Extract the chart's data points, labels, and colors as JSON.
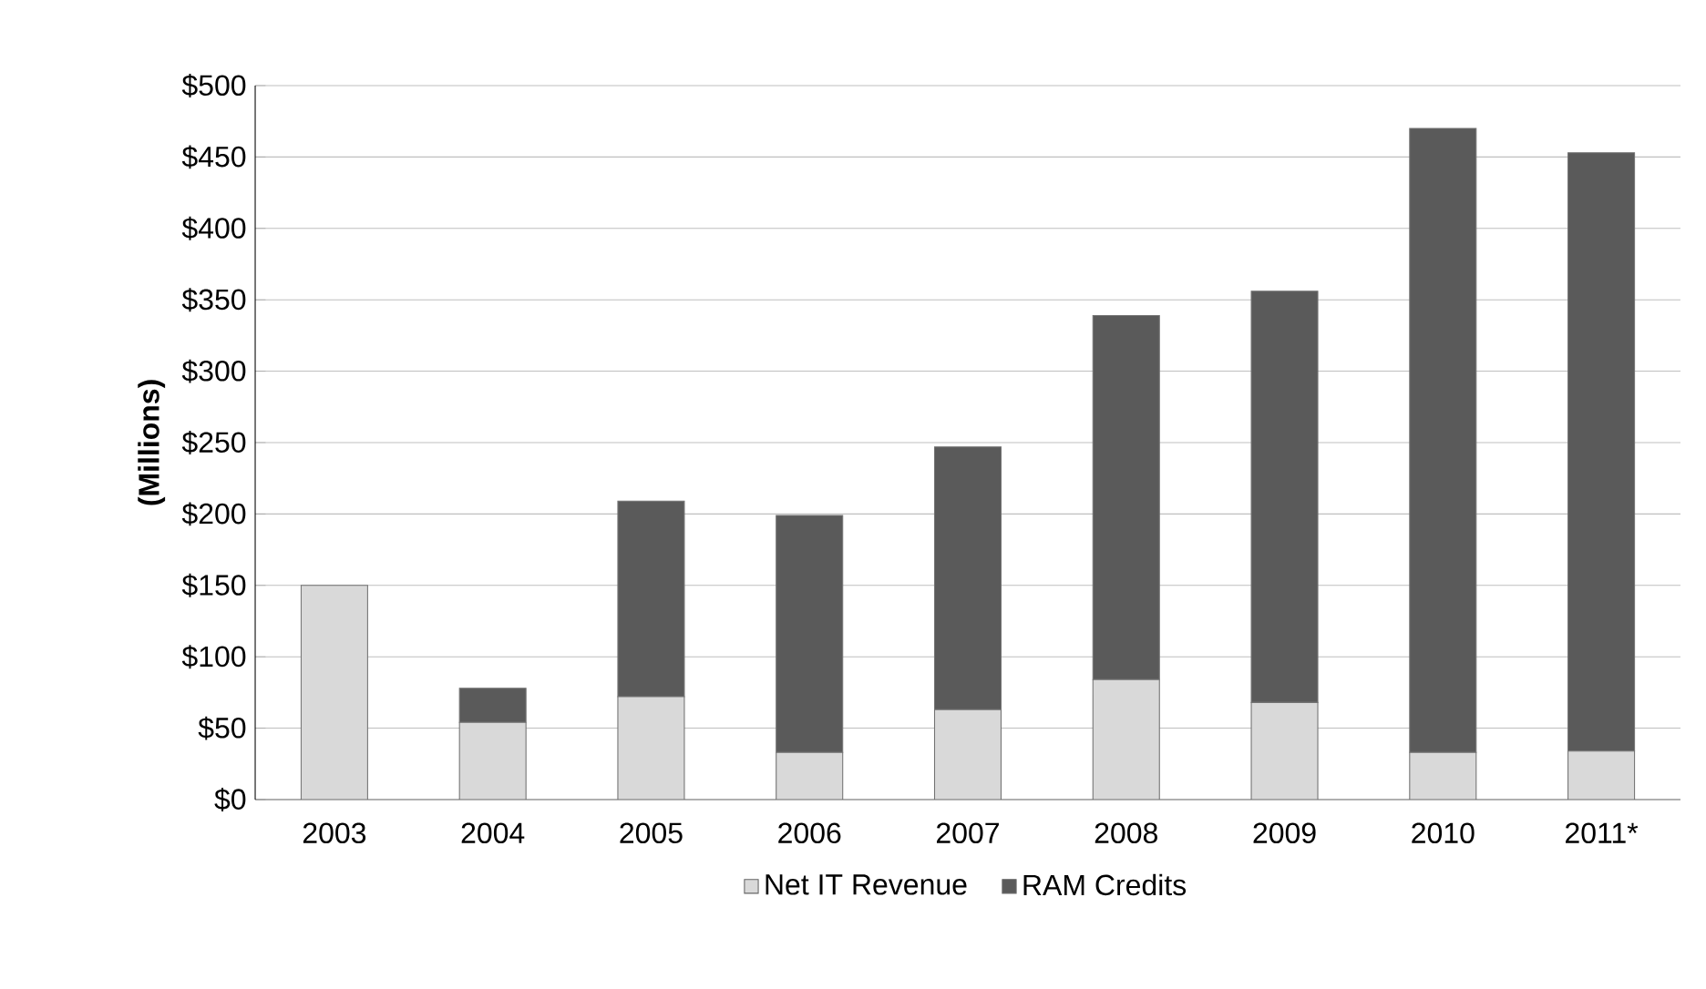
{
  "chart_data": {
    "type": "bar",
    "stacked": true,
    "ylabel": "(Millions)",
    "categories": [
      "2003",
      "2004",
      "2005",
      "2006",
      "2007",
      "2008",
      "2009",
      "2010",
      "2011*"
    ],
    "series": [
      {
        "name": "Net IT Revenue",
        "color": "#d9d9d9",
        "values": [
          150,
          54,
          72,
          33,
          63,
          84,
          68,
          33,
          34
        ]
      },
      {
        "name": "RAM Credits",
        "color": "#5a5a5a",
        "values": [
          0,
          24,
          137,
          166,
          184,
          255,
          288,
          437,
          419
        ]
      }
    ],
    "ylim": [
      0,
      500
    ],
    "yticks": [
      {
        "value": 0,
        "label": "$0"
      },
      {
        "value": 50,
        "label": "$50"
      },
      {
        "value": 100,
        "label": "$100"
      },
      {
        "value": 150,
        "label": "$150"
      },
      {
        "value": 200,
        "label": "$200"
      },
      {
        "value": 250,
        "label": "$250"
      },
      {
        "value": 300,
        "label": "$300"
      },
      {
        "value": 350,
        "label": "$350"
      },
      {
        "value": 400,
        "label": "$400"
      },
      {
        "value": 450,
        "label": "$450"
      },
      {
        "value": 500,
        "label": "$500"
      }
    ],
    "grid": "y",
    "legend": "bottom"
  }
}
